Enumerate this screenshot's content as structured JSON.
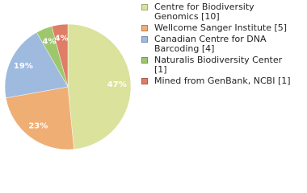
{
  "chart_data": {
    "type": "pie",
    "categories": [
      "Centre for Biodiversity Genomics [10]",
      "Wellcome Sanger Institute [5]",
      "Canadian Centre for DNA Barcoding [4]",
      "Naturalis Biodiversity Center [1]",
      "Mined from GenBank, NCBI [1]"
    ],
    "values": [
      47,
      23,
      19,
      4,
      4
    ],
    "value_labels": [
      "47%",
      "23%",
      "19%",
      "4%",
      "4%"
    ],
    "colors": [
      "#dbe29c",
      "#efae74",
      "#9fbadf",
      "#9ec76d",
      "#e07d67"
    ]
  }
}
